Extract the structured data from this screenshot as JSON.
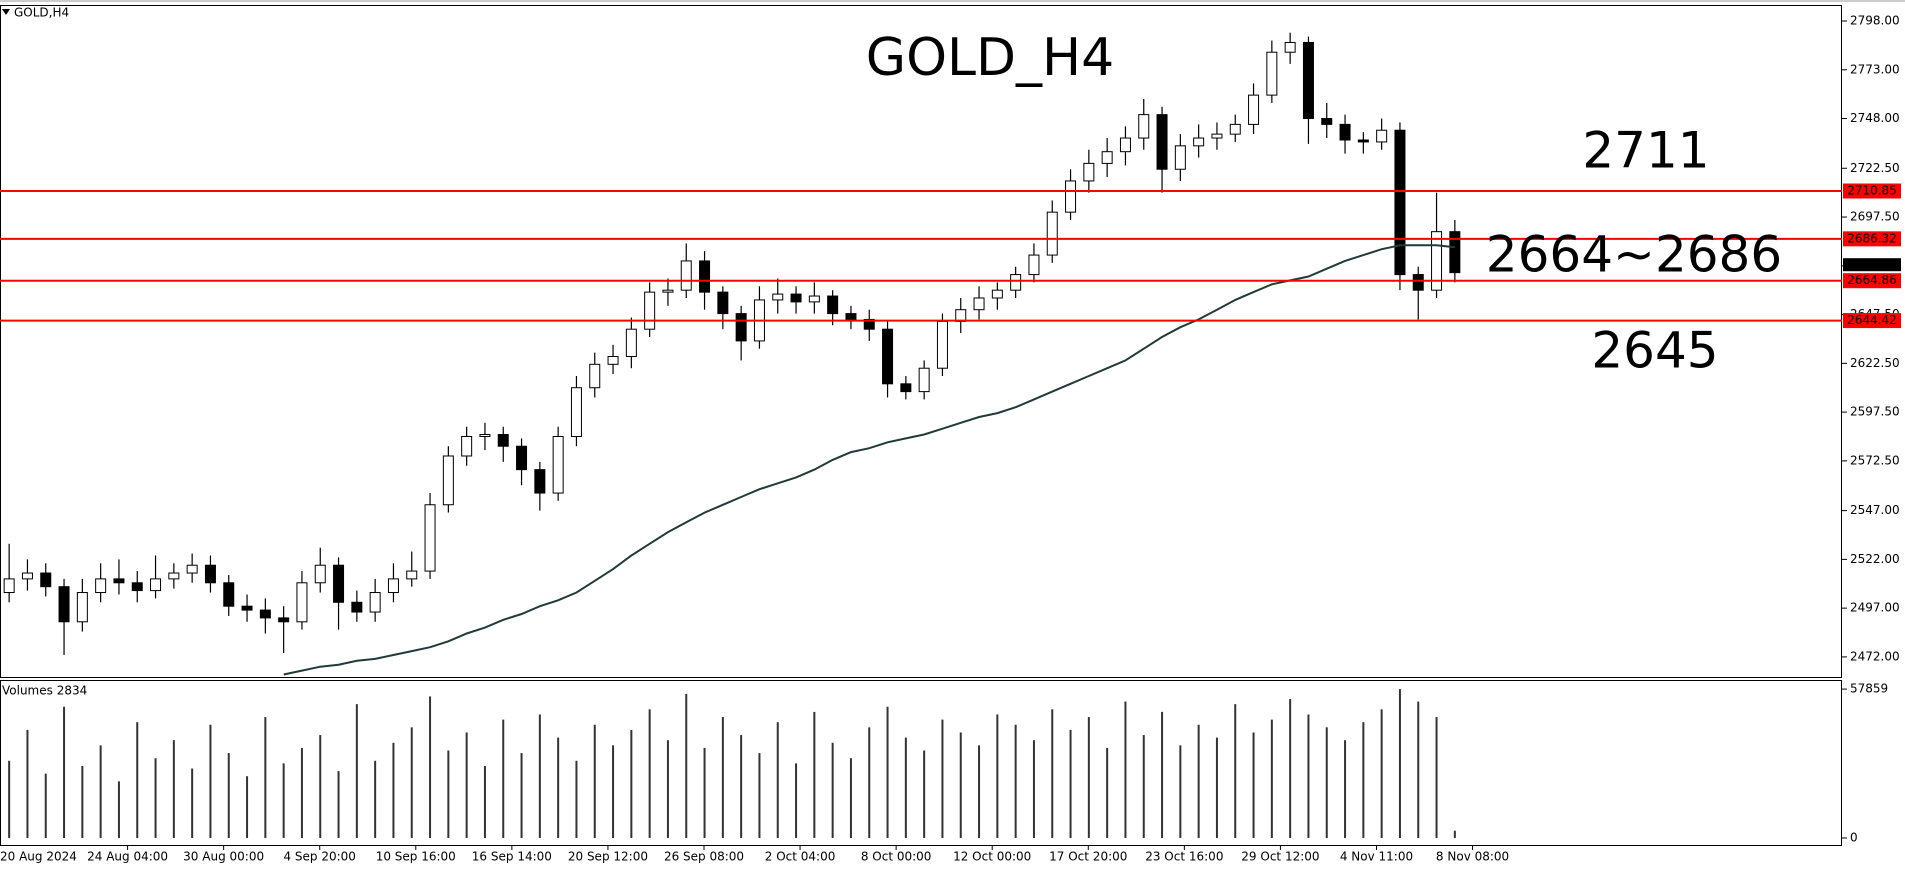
{
  "header": {
    "symbol_label": "GOLD,H4"
  },
  "chart_data": [
    {
      "type": "candlestick",
      "title": "GOLD_H4",
      "open": [
        2505,
        2512,
        2515,
        2508,
        2490,
        2505,
        2512,
        2510,
        2506,
        2512,
        2515,
        2519,
        2510,
        2498,
        2496,
        2492,
        2490,
        2510,
        2519,
        2500,
        2495,
        2505,
        2512,
        2516,
        2550,
        2575,
        2585,
        2586,
        2580,
        2568,
        2556,
        2585,
        2610,
        2622,
        2626,
        2640,
        2659,
        2660,
        2675,
        2659,
        2648,
        2634,
        2655,
        2658,
        2654,
        2657,
        2648,
        2645,
        2640,
        2612,
        2608,
        2620,
        2644,
        2650,
        2656,
        2660,
        2668,
        2678,
        2700,
        2716,
        2725,
        2731,
        2738,
        2750,
        2722,
        2734,
        2738,
        2740,
        2745,
        2760,
        2782,
        2787,
        2748,
        2745,
        2737,
        2736,
        2742,
        2668,
        2660,
        2690
      ],
      "high": [
        2530,
        2522,
        2520,
        2512,
        2512,
        2520,
        2522,
        2516,
        2524,
        2520,
        2525,
        2524,
        2514,
        2504,
        2502,
        2498,
        2516,
        2528,
        2523,
        2506,
        2512,
        2520,
        2526,
        2556,
        2580,
        2590,
        2592,
        2590,
        2584,
        2572,
        2590,
        2616,
        2628,
        2632,
        2646,
        2664,
        2666,
        2684,
        2680,
        2662,
        2652,
        2662,
        2666,
        2662,
        2664,
        2660,
        2652,
        2650,
        2644,
        2616,
        2624,
        2648,
        2656,
        2662,
        2664,
        2672,
        2684,
        2706,
        2722,
        2732,
        2738,
        2744,
        2758,
        2754,
        2740,
        2745,
        2746,
        2750,
        2766,
        2788,
        2792,
        2790,
        2756,
        2750,
        2741,
        2748,
        2746,
        2672,
        2710,
        2696
      ],
      "low": [
        2500,
        2506,
        2503,
        2473,
        2485,
        2500,
        2504,
        2500,
        2502,
        2507,
        2510,
        2505,
        2493,
        2490,
        2484,
        2474,
        2486,
        2505,
        2486,
        2490,
        2490,
        2500,
        2508,
        2512,
        2546,
        2570,
        2578,
        2572,
        2560,
        2547,
        2552,
        2580,
        2605,
        2617,
        2620,
        2636,
        2652,
        2656,
        2650,
        2640,
        2624,
        2630,
        2648,
        2648,
        2648,
        2642,
        2640,
        2634,
        2605,
        2604,
        2604,
        2616,
        2638,
        2645,
        2650,
        2656,
        2664,
        2674,
        2696,
        2710,
        2718,
        2724,
        2732,
        2710,
        2716,
        2728,
        2732,
        2736,
        2740,
        2756,
        2776,
        2735,
        2738,
        2730,
        2730,
        2732,
        2660,
        2645,
        2656,
        2664
      ],
      "close": [
        2512,
        2515,
        2508,
        2490,
        2505,
        2512,
        2510,
        2506,
        2512,
        2515,
        2519,
        2510,
        2498,
        2496,
        2492,
        2490,
        2510,
        2519,
        2500,
        2495,
        2505,
        2512,
        2516,
        2550,
        2575,
        2585,
        2586,
        2580,
        2568,
        2556,
        2585,
        2610,
        2622,
        2626,
        2640,
        2659,
        2660,
        2675,
        2659,
        2648,
        2634,
        2655,
        2658,
        2654,
        2657,
        2648,
        2645,
        2640,
        2612,
        2608,
        2620,
        2644,
        2650,
        2656,
        2660,
        2668,
        2678,
        2700,
        2716,
        2725,
        2731,
        2738,
        2750,
        2722,
        2734,
        2738,
        2740,
        2745,
        2760,
        2782,
        2787,
        2748,
        2745,
        2737,
        2736,
        2742,
        2668,
        2660,
        2690,
        2669
      ],
      "ma": [
        null,
        null,
        null,
        null,
        null,
        null,
        null,
        null,
        null,
        null,
        null,
        null,
        null,
        null,
        null,
        2463,
        2465,
        2467,
        2468,
        2470,
        2471,
        2473,
        2475,
        2477,
        2480,
        2484,
        2487,
        2491,
        2494,
        2498,
        2501,
        2505,
        2511,
        2517,
        2524,
        2530,
        2536,
        2541,
        2546,
        2550,
        2554,
        2558,
        2561,
        2564,
        2568,
        2573,
        2577,
        2579,
        2582,
        2584,
        2586,
        2589,
        2592,
        2595,
        2597,
        2600,
        2604,
        2608,
        2612,
        2616,
        2620,
        2624,
        2630,
        2636,
        2641,
        2645,
        2650,
        2655,
        2659,
        2663,
        2665,
        2667,
        2671,
        2675,
        2678,
        2681,
        2683,
        2683,
        2683,
        2682
      ],
      "ma_color": "#223a3a",
      "up_color": "#ffffff",
      "down_color": "#000000",
      "ylim": [
        2461.7,
        2806.2
      ],
      "yticks": [
        {
          "value": 2798,
          "label": "2798.00"
        },
        {
          "value": 2773,
          "label": "2773.00"
        },
        {
          "value": 2748,
          "label": "2748.00"
        },
        {
          "value": 2722.5,
          "label": "2722.50"
        },
        {
          "value": 2697.5,
          "label": "2697.50"
        },
        {
          "value": 2672.5,
          "label": "2672.50"
        },
        {
          "value": 2647.5,
          "label": "2647.50"
        },
        {
          "value": 2622.5,
          "label": "2622.50"
        },
        {
          "value": 2597.5,
          "label": "2597.50"
        },
        {
          "value": 2572.5,
          "label": "2572.50"
        },
        {
          "value": 2547,
          "label": "2547.00"
        },
        {
          "value": 2522,
          "label": "2522.00"
        },
        {
          "value": 2497,
          "label": "2497.00"
        },
        {
          "value": 2472,
          "label": "2472.00"
        }
      ],
      "grid": false,
      "levels": [
        2710.85,
        2686.32,
        2664.86,
        2644.42
      ],
      "level_color": "#ff0000",
      "current_price": 2669.22,
      "annotations": [
        {
          "text": "2711",
          "color": "#ff0000"
        },
        {
          "text": "2664~2686",
          "color": "#00007f"
        },
        {
          "text": "2645",
          "color": "#ff0000"
        }
      ],
      "title_color": "#ff0000",
      "time_labels": [
        "20 Aug 2024",
        "24 Aug 04:00",
        "30 Aug 00:00",
        "4 Sep 20:00",
        "10 Sep 16:00",
        "16 Sep 14:00",
        "20 Sep 12:00",
        "26 Sep 08:00",
        "2 Oct 04:00",
        "8 Oct 00:00",
        "12 Oct 00:00",
        "17 Oct 20:00",
        "23 Oct 16:00",
        "29 Oct 12:00",
        "4 Nov 11:00",
        "8 Nov 08:00"
      ]
    },
    {
      "type": "bar",
      "title": "Volumes 2834",
      "color": "#333333",
      "values": [
        30000,
        42000,
        25000,
        51000,
        28000,
        36000,
        22000,
        45000,
        31000,
        38000,
        27000,
        44000,
        33000,
        24000,
        47000,
        29000,
        35000,
        40000,
        26000,
        52000,
        30000,
        37000,
        43000,
        55000,
        34000,
        41000,
        28000,
        46000,
        33000,
        48000,
        39000,
        30000,
        44000,
        36000,
        42000,
        50000,
        38000,
        56000,
        35000,
        47000,
        40000,
        33000,
        45000,
        29000,
        49000,
        37000,
        31000,
        43000,
        51000,
        39000,
        34000,
        46000,
        41000,
        36000,
        48000,
        44000,
        38000,
        50000,
        42000,
        47000,
        35000,
        53000,
        40000,
        49000,
        36000,
        44000,
        39000,
        52000,
        41000,
        46000,
        54000,
        48000,
        43000,
        38000,
        45000,
        50000,
        57859,
        53000,
        47000,
        2834
      ],
      "ylim": [
        0,
        61000
      ],
      "yticks": [
        57859,
        0
      ]
    }
  ]
}
